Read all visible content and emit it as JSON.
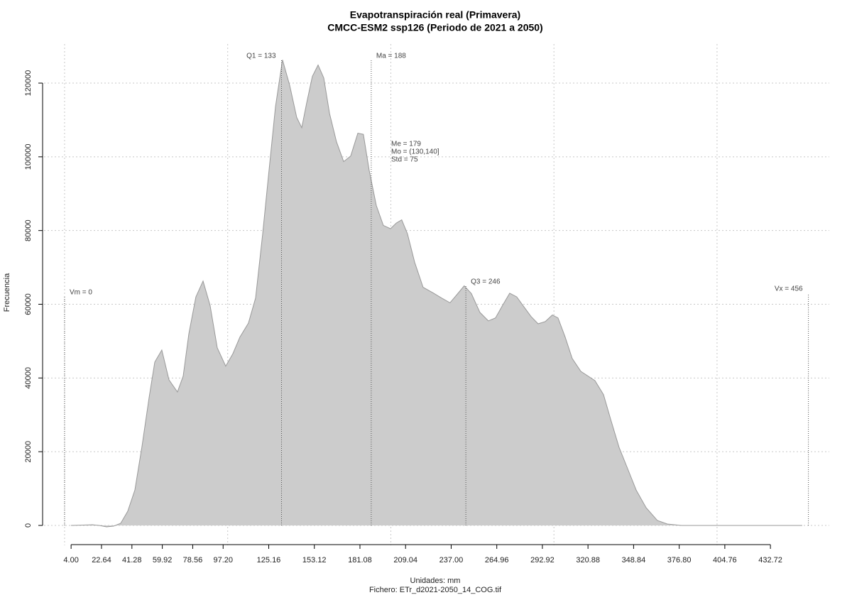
{
  "chart_data": {
    "type": "area",
    "title": "Evapotranspiración real (Primavera)",
    "subtitle": "CMCC-ESM2 ssp126 (Periodo de 2021 a 2050)",
    "x_label": "Unidades: mm",
    "caption": "Fichero: ETr_d2021-2050_14_COG.tif",
    "y_label": "Frecuencia",
    "color": "#cccccc",
    "line_color": "#999999",
    "grid": true,
    "x": [
      3.9,
      17.0,
      21.3,
      25.7,
      30.0,
      34.4,
      38.7,
      43.1,
      47.4,
      51.8,
      55.3,
      59.6,
      64.0,
      69.2,
      72.7,
      76.2,
      80.5,
      84.9,
      89.2,
      93.6,
      98.8,
      103.2,
      107.5,
      112.7,
      117.1,
      121.4,
      124.9,
      129.3,
      133.6,
      138.0,
      142.3,
      145.4,
      148.4,
      151.9,
      155.4,
      158.9,
      162.4,
      166.7,
      171.1,
      175.4,
      179.8,
      183.2,
      186.7,
      191.1,
      195.4,
      199.8,
      203.3,
      206.7,
      210.2,
      214.6,
      219.8,
      225.9,
      231.1,
      236.3,
      240.7,
      245.0,
      249.4,
      254.6,
      259.8,
      264.2,
      268.5,
      272.9,
      277.2,
      281.6,
      285.9,
      290.3,
      294.7,
      299.0,
      302.5,
      306.9,
      311.2,
      316.5,
      325.1,
      330.4,
      334.7,
      339.9,
      345.2,
      350.4,
      356.5,
      363.4,
      369.5,
      378.2,
      395.6,
      452.2
    ],
    "values": [
      0,
      193,
      0,
      -385,
      -193,
      578,
      3854,
      9635,
      21195,
      34685,
      44320,
      47600,
      39500,
      36200,
      40500,
      52000,
      62000,
      66300,
      59700,
      48200,
      43200,
      46600,
      51100,
      54900,
      61700,
      79000,
      94400,
      113600,
      126300,
      119400,
      110700,
      107900,
      114600,
      121800,
      124900,
      121400,
      111800,
      104100,
      98700,
      100200,
      106400,
      106100,
      96400,
      86800,
      81400,
      80500,
      82000,
      82900,
      79100,
      71400,
      64600,
      63100,
      61700,
      60400,
      62700,
      65000,
      62900,
      57800,
      55500,
      56300,
      59700,
      63000,
      62000,
      59300,
      56700,
      54700,
      55300,
      57100,
      56300,
      51100,
      45300,
      41800,
      39300,
      35500,
      28900,
      21200,
      15400,
      9600,
      4800,
      1350,
      385,
      0,
      0,
      0
    ],
    "xlim": [
      -12.6,
      468.8
    ],
    "ylim": [
      -5400,
      130600
    ],
    "xticks": [
      {
        "value": 4,
        "label": "4.00"
      },
      22.64,
      41.28,
      59.92,
      78.56,
      {
        "value": 97.2,
        "label": "97.20"
      },
      125.16,
      153.12,
      181.08,
      209.04,
      {
        "value": 237,
        "label": "237.00"
      },
      264.96,
      292.92,
      320.88,
      348.84,
      {
        "value": 376.8,
        "label": "376.80"
      },
      404.76,
      432.72
    ],
    "xgrid": [
      0,
      100,
      200,
      300,
      400
    ],
    "yticks": [
      0,
      20000,
      40000,
      60000,
      80000,
      100000,
      120000
    ],
    "markers": [
      {
        "label": "Vm = 0",
        "value": 0
      },
      {
        "label": "Q1 = 133",
        "value": 133
      },
      {
        "label": "Ma = 188",
        "value": 188
      },
      {
        "label": "Q3 = 246",
        "value": 246
      },
      {
        "label": "Vx = 456",
        "value": 456
      }
    ],
    "stats": [
      "Me = 179",
      "Mo = (130,140]",
      "Std = 75"
    ]
  }
}
